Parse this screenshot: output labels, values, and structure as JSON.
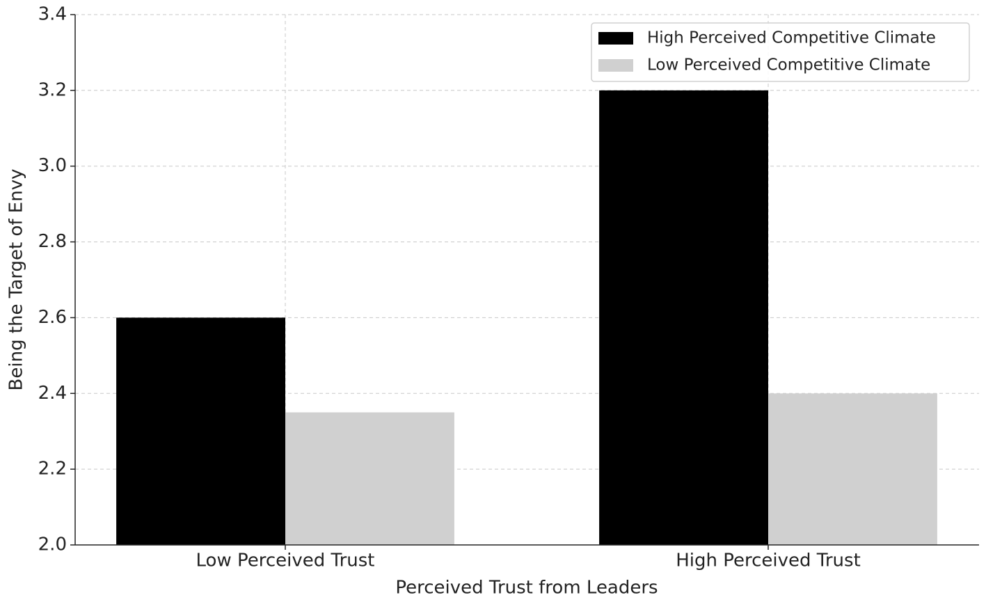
{
  "chart_data": {
    "type": "bar",
    "xlabel": "Perceived Trust from Leaders",
    "ylabel": "Being the Target of Envy",
    "categories": [
      "Low Perceived Trust",
      "High Perceived Trust"
    ],
    "series": [
      {
        "name": "High Perceived Competitive Climate",
        "color": "#000000",
        "values": [
          2.6,
          3.2
        ]
      },
      {
        "name": "Low Perceived Competitive Climate",
        "color": "#d0d0d0",
        "values": [
          2.35,
          2.4
        ]
      }
    ],
    "ylim": [
      2.0,
      3.4
    ],
    "yticks": [
      {
        "value": 2.0,
        "label": "2.0"
      },
      2.2,
      2.4,
      2.6,
      2.8,
      {
        "value": 3.0,
        "label": "3.0"
      },
      3.2,
      3.4
    ],
    "grid": true,
    "legend": "upper right"
  }
}
